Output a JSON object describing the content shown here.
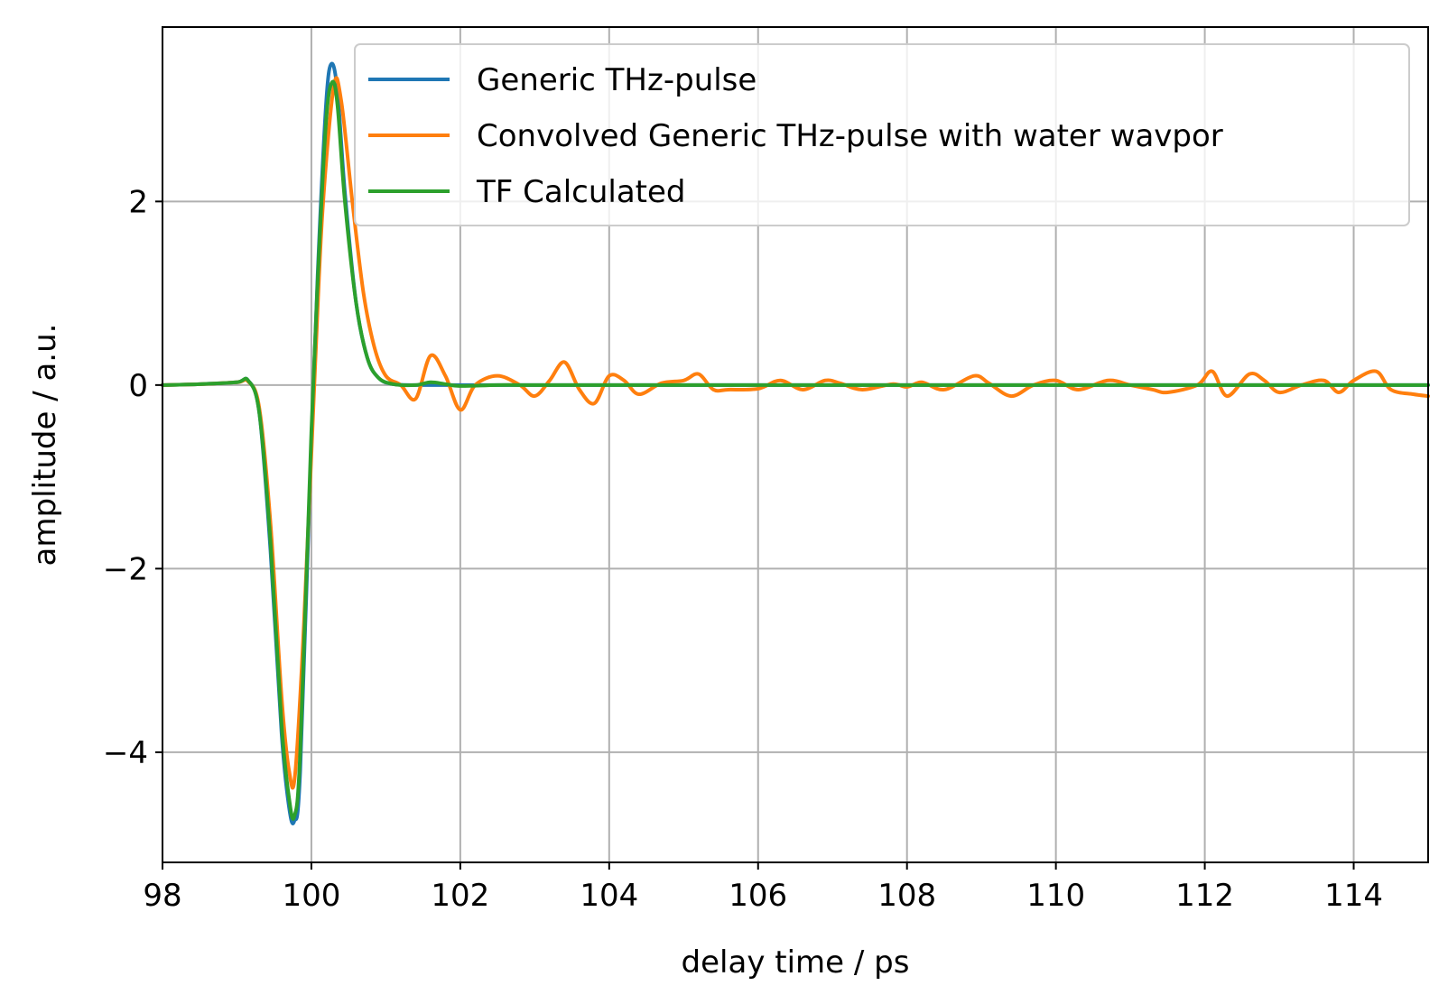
{
  "chart_data": {
    "type": "line",
    "title": "",
    "xlabel": "delay time / ps",
    "ylabel": "amplitude / a.u.",
    "xlim": [
      98,
      115
    ],
    "ylim": [
      -5.2,
      3.9
    ],
    "xticks": [
      98,
      100,
      102,
      104,
      106,
      108,
      110,
      112,
      114
    ],
    "xtick_labels": [
      "98",
      "100",
      "102",
      "104",
      "106",
      "108",
      "110",
      "112",
      "114"
    ],
    "yticks": [
      2,
      0,
      -2,
      -4
    ],
    "ytick_labels": [
      "2",
      "0",
      "−2",
      "−4"
    ],
    "grid": true,
    "legend_position": "top-right",
    "series": [
      {
        "name": "Generic THz-pulse",
        "color": "#1f77b4",
        "x": [
          98,
          98.5,
          99.0,
          99.15,
          99.3,
          99.45,
          99.6,
          99.7,
          99.77,
          99.85,
          100.0,
          100.1,
          100.2,
          100.27,
          100.35,
          100.45,
          100.6,
          100.75,
          100.9,
          101.1,
          101.5,
          102,
          103,
          104,
          106,
          108,
          110,
          112,
          114,
          115
        ],
        "y": [
          0,
          0.01,
          0.03,
          0.05,
          -0.3,
          -1.8,
          -3.8,
          -4.6,
          -4.75,
          -4.2,
          -0.6,
          1.5,
          3.1,
          3.5,
          3.2,
          2.1,
          0.9,
          0.3,
          0.08,
          0.01,
          0.0,
          0.0,
          0.0,
          0.0,
          0.0,
          0.0,
          0.0,
          0.0,
          0.0,
          0.0
        ]
      },
      {
        "name": "Convolved Generic THz-pulse with water wavpor",
        "color": "#ff7f0e",
        "x": [
          98,
          98.5,
          99.0,
          99.15,
          99.3,
          99.45,
          99.6,
          99.7,
          99.78,
          99.9,
          100.05,
          100.15,
          100.3,
          100.4,
          100.55,
          100.7,
          100.85,
          101.0,
          101.2,
          101.4,
          101.6,
          101.8,
          102.0,
          102.2,
          102.5,
          102.8,
          103.0,
          103.2,
          103.4,
          103.6,
          103.8,
          104.0,
          104.2,
          104.4,
          104.7,
          105.0,
          105.2,
          105.4,
          105.6,
          106.0,
          106.3,
          106.6,
          106.9,
          107.1,
          107.4,
          107.8,
          108.0,
          108.2,
          108.5,
          108.9,
          109.1,
          109.4,
          109.7,
          110.0,
          110.3,
          110.7,
          111.0,
          111.3,
          111.5,
          111.9,
          112.1,
          112.3,
          112.6,
          112.8,
          113.0,
          113.3,
          113.6,
          113.8,
          114.0,
          114.3,
          114.5,
          114.8,
          115.0
        ],
        "y": [
          0,
          0.01,
          0.03,
          0.04,
          -0.25,
          -1.5,
          -3.4,
          -4.2,
          -4.25,
          -2.6,
          0.2,
          1.9,
          3.25,
          3.1,
          2.0,
          1.0,
          0.4,
          0.1,
          0.0,
          -0.15,
          0.32,
          0.1,
          -0.27,
          0.0,
          0.1,
          0.0,
          -0.12,
          0.05,
          0.25,
          -0.05,
          -0.2,
          0.1,
          0.05,
          -0.1,
          0.02,
          0.05,
          0.12,
          -0.05,
          -0.05,
          -0.04,
          0.05,
          -0.05,
          0.05,
          0.02,
          -0.05,
          0.01,
          -0.02,
          0.03,
          -0.05,
          0.1,
          0.02,
          -0.12,
          0.0,
          0.05,
          -0.05,
          0.05,
          0.0,
          -0.05,
          -0.08,
          0.0,
          0.15,
          -0.12,
          0.12,
          0.05,
          -0.08,
          0.0,
          0.05,
          -0.08,
          0.05,
          0.15,
          -0.05,
          -0.1,
          -0.12
        ]
      },
      {
        "name": "TF Calculated",
        "color": "#2ca02c",
        "x": [
          98,
          98.5,
          99.0,
          99.15,
          99.3,
          99.45,
          99.6,
          99.7,
          99.77,
          99.85,
          100.0,
          100.1,
          100.2,
          100.28,
          100.35,
          100.45,
          100.6,
          100.75,
          100.9,
          101.1,
          101.4,
          101.6,
          101.8,
          102.0,
          102.5,
          103.0,
          104.0,
          105.0,
          106.0,
          107.0,
          108.0,
          109.0,
          110.0,
          111.0,
          112.0,
          113.0,
          114.0,
          115.0
        ],
        "y": [
          0,
          0.01,
          0.03,
          0.05,
          -0.3,
          -1.7,
          -3.7,
          -4.5,
          -4.7,
          -4.0,
          -0.5,
          1.4,
          2.9,
          3.3,
          3.05,
          2.0,
          0.9,
          0.3,
          0.08,
          0.01,
          0.0,
          0.03,
          0.01,
          -0.01,
          0.0,
          0.0,
          0.0,
          0.0,
          0.0,
          0.0,
          0.0,
          0.0,
          0.0,
          0.0,
          0.0,
          0.0,
          0.0,
          0.0
        ]
      }
    ]
  }
}
